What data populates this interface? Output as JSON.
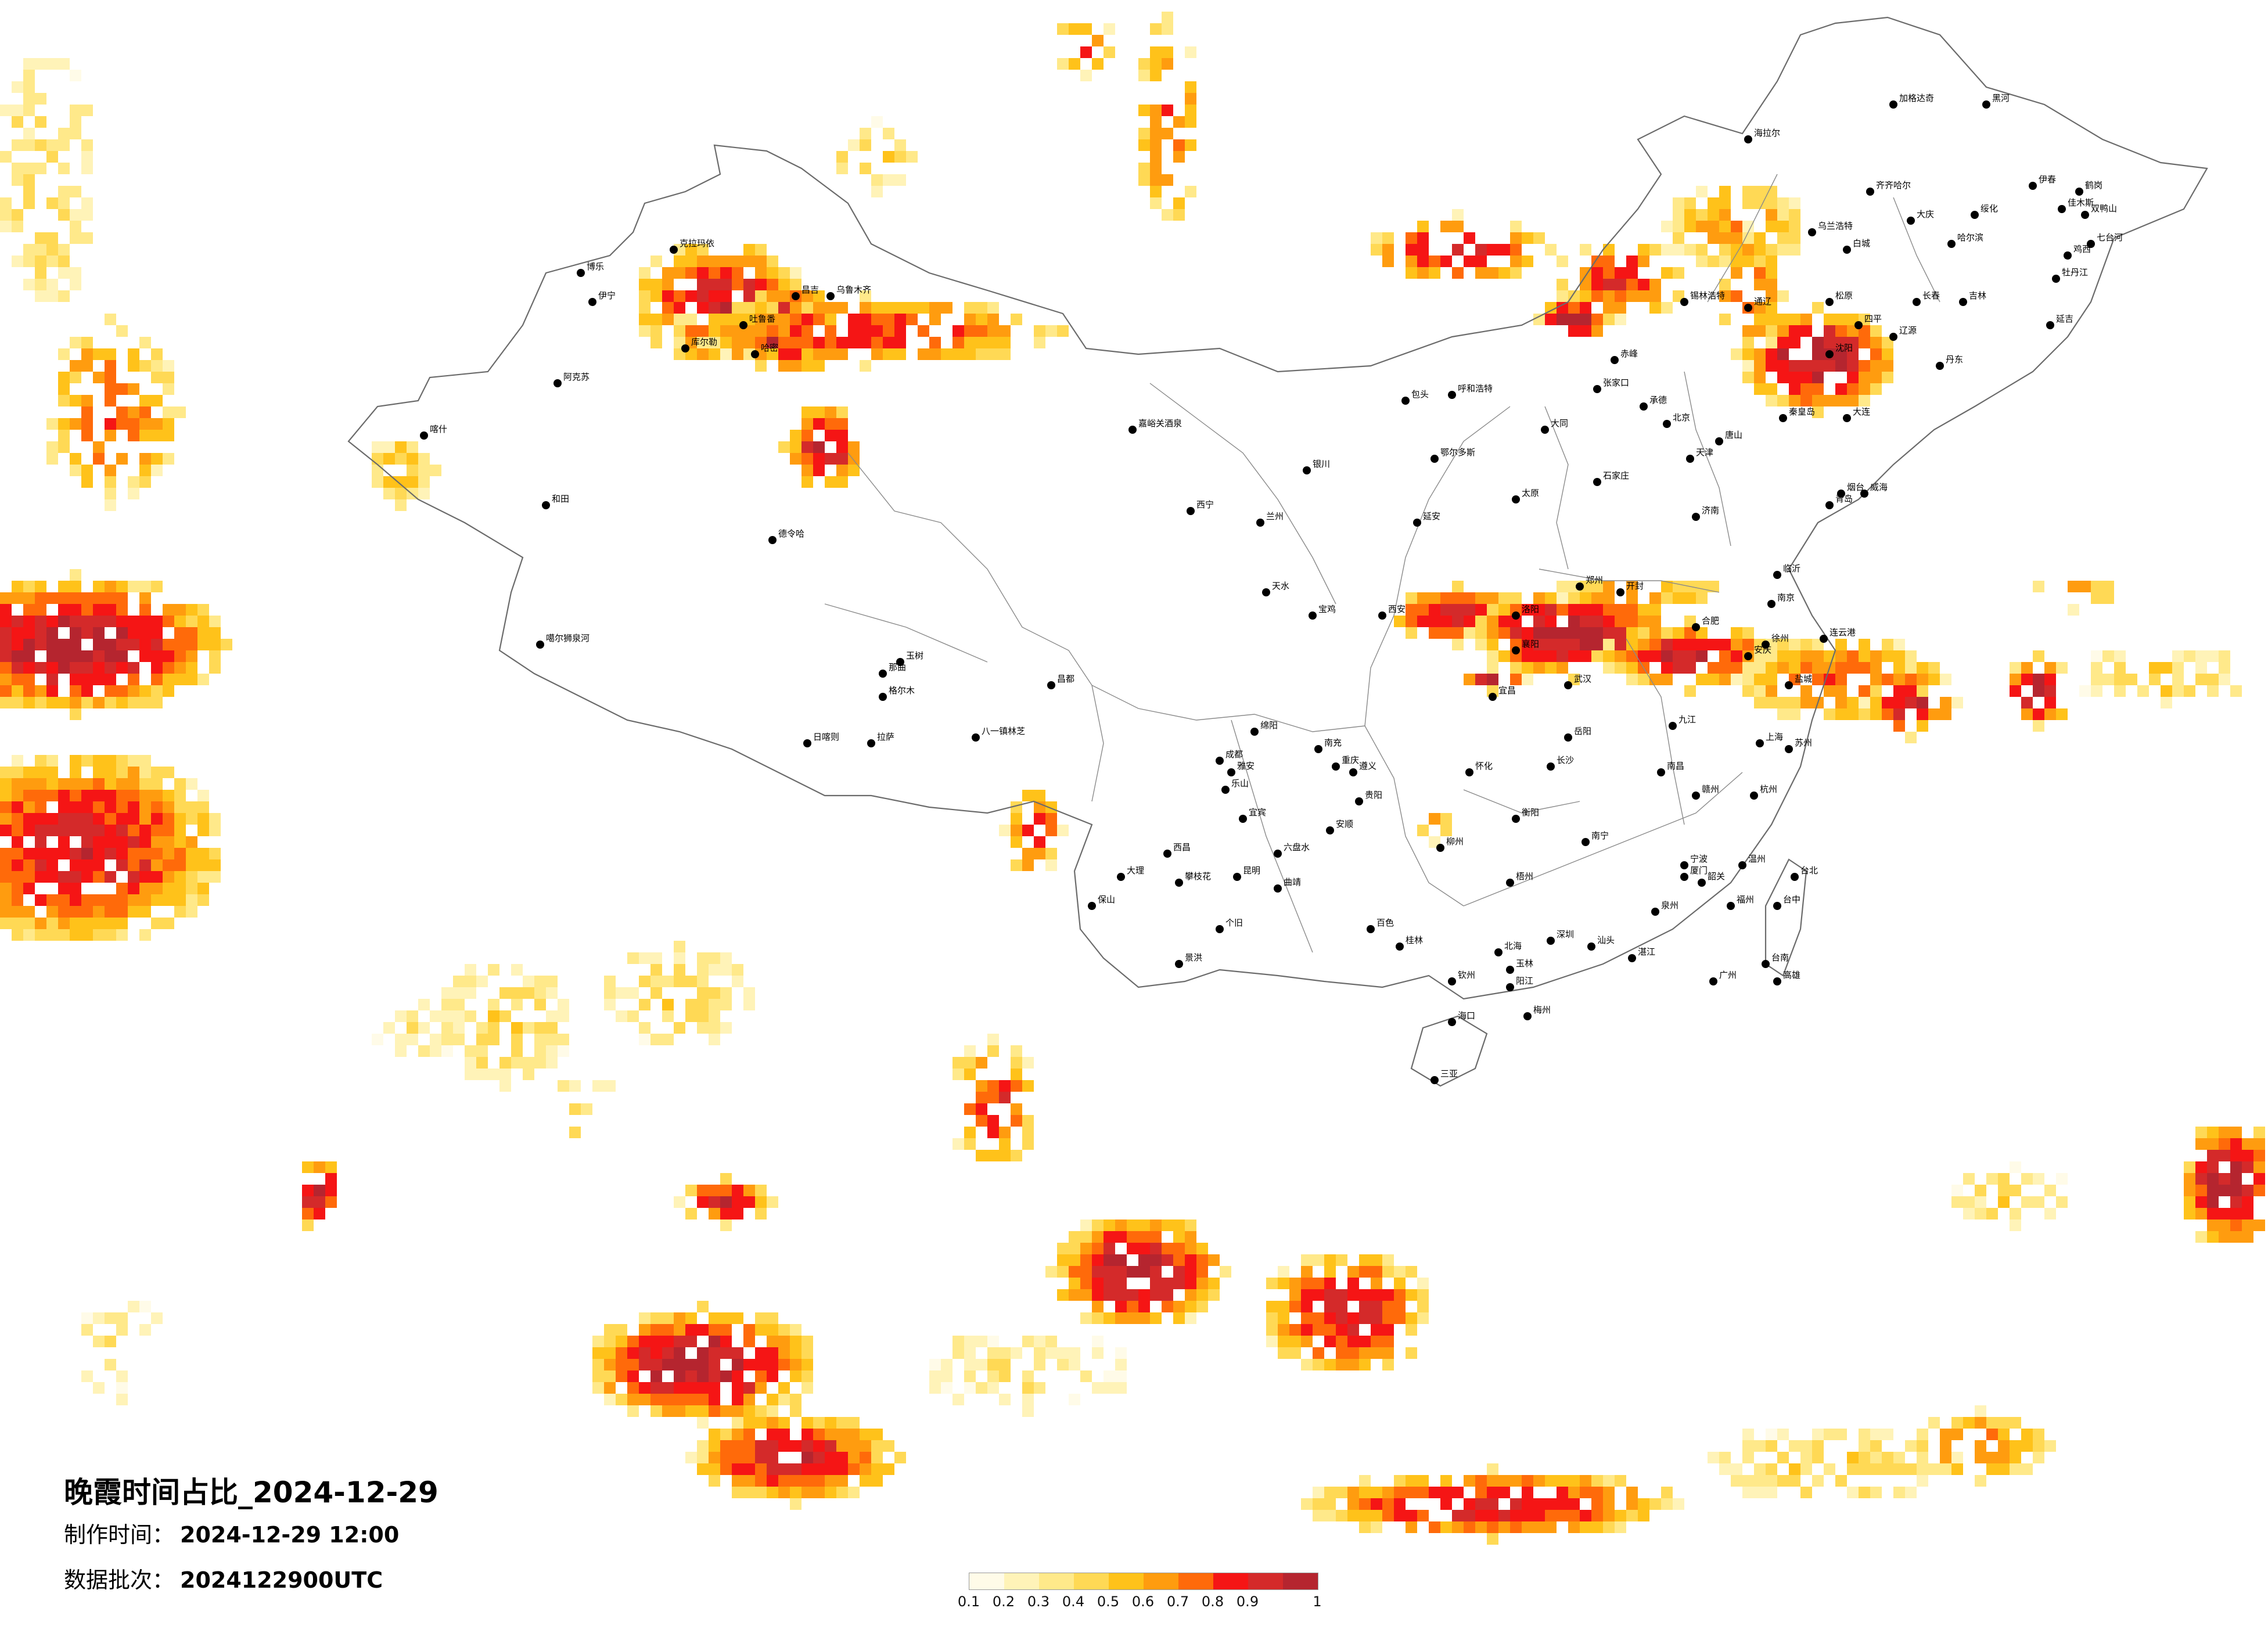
{
  "map": {
    "title": "晚霞时间占比_2024-12-29",
    "production_label": "制作时间：",
    "production_time": "2024-12-29 12:00",
    "batch_label": "数据批次：",
    "batch_value": "2024122900UTC"
  },
  "legend": {
    "colors": [
      "#fffbe8",
      "#fff3b8",
      "#ffe98a",
      "#ffd955",
      "#ffc21a",
      "#ff9c0f",
      "#ff6a0a",
      "#f51515",
      "#d42a2a",
      "#b5252f"
    ],
    "labels": [
      "0.1",
      "0.2",
      "0.3",
      "0.4",
      "0.5",
      "0.6",
      "0.7",
      "0.8",
      "0.9",
      "1"
    ]
  },
  "cities": [
    {
      "name": "加格达奇"
    },
    {
      "name": "黑河"
    },
    {
      "name": "海拉尔"
    },
    {
      "name": "伊春"
    },
    {
      "name": "齐齐哈尔"
    },
    {
      "name": "鹤岗"
    },
    {
      "name": "大庆"
    },
    {
      "name": "绥化"
    },
    {
      "name": "佳木斯"
    },
    {
      "name": "双鸭山"
    },
    {
      "name": "哈尔滨"
    },
    {
      "name": "七台河"
    },
    {
      "name": "鸡西"
    },
    {
      "name": "乌兰浩特"
    },
    {
      "name": "白城"
    },
    {
      "name": "牡丹江"
    },
    {
      "name": "松原"
    },
    {
      "name": "长春"
    },
    {
      "name": "吉林"
    },
    {
      "name": "通辽"
    },
    {
      "name": "四平"
    },
    {
      "name": "辽源"
    },
    {
      "name": "延吉"
    },
    {
      "name": "锡林浩特"
    },
    {
      "name": "沈阳"
    },
    {
      "name": "丹东"
    },
    {
      "name": "大连"
    },
    {
      "name": "赤峰"
    },
    {
      "name": "张家口"
    },
    {
      "name": "北京"
    },
    {
      "name": "天津"
    },
    {
      "name": "承德"
    },
    {
      "name": "唐山"
    },
    {
      "name": "秦皇岛"
    },
    {
      "name": "呼和浩特"
    },
    {
      "name": "包头"
    },
    {
      "name": "鄂尔多斯"
    },
    {
      "name": "大同"
    },
    {
      "name": "太原"
    },
    {
      "name": "石家庄"
    },
    {
      "name": "济南"
    },
    {
      "name": "青岛"
    },
    {
      "name": "烟台"
    },
    {
      "name": "威海"
    },
    {
      "name": "临沂"
    },
    {
      "name": "郑州"
    },
    {
      "name": "开封"
    },
    {
      "name": "洛阳"
    },
    {
      "name": "西安"
    },
    {
      "name": "宝鸡"
    },
    {
      "name": "延安"
    },
    {
      "name": "银川"
    },
    {
      "name": "兰州"
    },
    {
      "name": "西宁"
    },
    {
      "name": "天水"
    },
    {
      "name": "格尔木"
    },
    {
      "name": "德令哈"
    },
    {
      "name": "玉树"
    },
    {
      "name": "乌鲁木齐"
    },
    {
      "name": "昌吉"
    },
    {
      "name": "克拉玛依"
    },
    {
      "name": "伊宁"
    },
    {
      "name": "博乐"
    },
    {
      "name": "阿克苏"
    },
    {
      "name": "喀什"
    },
    {
      "name": "和田"
    },
    {
      "name": "库尔勒"
    },
    {
      "name": "吐鲁番"
    },
    {
      "name": "哈密"
    },
    {
      "name": "嘉峪关酒泉"
    },
    {
      "name": "噶尔狮泉河"
    },
    {
      "name": "日喀则"
    },
    {
      "name": "拉萨"
    },
    {
      "name": "八一镇林芝"
    },
    {
      "name": "那曲"
    },
    {
      "name": "昌都"
    },
    {
      "name": "成都"
    },
    {
      "name": "重庆"
    },
    {
      "name": "绵阳"
    },
    {
      "name": "南充"
    },
    {
      "name": "雅安"
    },
    {
      "name": "乐山"
    },
    {
      "name": "宜宾"
    },
    {
      "name": "西昌"
    },
    {
      "name": "攀枝花"
    },
    {
      "name": "贵阳"
    },
    {
      "name": "遵义"
    },
    {
      "name": "安顺"
    },
    {
      "name": "六盘水"
    },
    {
      "name": "昆明"
    },
    {
      "name": "大理"
    },
    {
      "name": "保山"
    },
    {
      "name": "个旧"
    },
    {
      "name": "景洪"
    },
    {
      "name": "曲靖"
    },
    {
      "name": "武汉"
    },
    {
      "name": "宜昌"
    },
    {
      "name": "襄阳"
    },
    {
      "name": "长沙"
    },
    {
      "name": "岳阳"
    },
    {
      "name": "衡阳"
    },
    {
      "name": "怀化"
    },
    {
      "name": "南昌"
    },
    {
      "name": "九江"
    },
    {
      "name": "赣州"
    },
    {
      "name": "合肥"
    },
    {
      "name": "安庆"
    },
    {
      "name": "南京"
    },
    {
      "name": "徐州"
    },
    {
      "name": "连云港"
    },
    {
      "name": "盐城"
    },
    {
      "name": "苏州"
    },
    {
      "name": "上海"
    },
    {
      "name": "杭州"
    },
    {
      "name": "宁波"
    },
    {
      "name": "温州"
    },
    {
      "name": "福州"
    },
    {
      "name": "厦门"
    },
    {
      "name": "泉州"
    },
    {
      "name": "广州"
    },
    {
      "name": "深圳"
    },
    {
      "name": "汕头"
    },
    {
      "name": "湛江"
    },
    {
      "name": "梅州"
    },
    {
      "name": "韶关"
    },
    {
      "name": "南宁"
    },
    {
      "name": "桂林"
    },
    {
      "name": "柳州"
    },
    {
      "name": "梧州"
    },
    {
      "name": "北海"
    },
    {
      "name": "海口"
    },
    {
      "name": "三亚"
    },
    {
      "name": "台北"
    },
    {
      "name": "台中"
    },
    {
      "name": "台南"
    },
    {
      "name": "高雄"
    },
    {
      "name": "玉林"
    },
    {
      "name": "百色"
    },
    {
      "name": "钦州"
    },
    {
      "name": "阳江"
    }
  ]
}
